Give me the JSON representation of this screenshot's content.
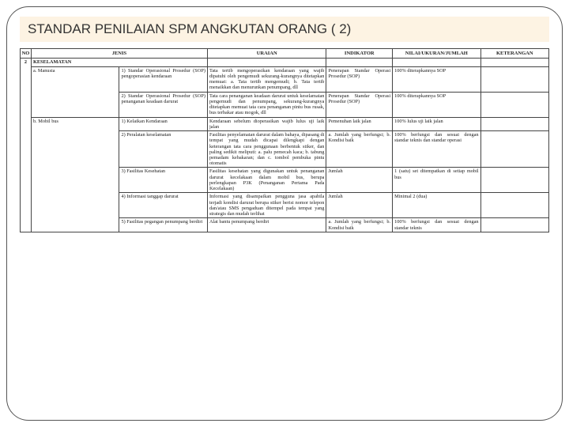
{
  "title": "STANDAR PENILAIAN SPM ANGKUTAN ORANG ( 2)",
  "headers": {
    "no": "NO",
    "jenis": "JENIS",
    "uraian": "URAIAN",
    "indikator": "INDIKATOR",
    "nilai": "NILAI/UKURAN/JUMLAH",
    "keterangan": "KETERANGAN"
  },
  "no_val": "2",
  "group_title": "KESELAMATAN",
  "cat_a": "a. Manusia",
  "cat_b": "b. Mobil bus",
  "r1": {
    "jenis": "1) Standar Operasional Prosedur (SOP) pengoperasian kendaraan",
    "uraian": "Tata tertib mengoperasikan kendaraan yang wajib dipatuhi oleh pengemudi sekurang-kurangnya ditetapkan memuat:\na. Tata tertib mengemudi;\nb. Tata tertib menaikkan dan menurunkan penumpang, dll",
    "indikator": "Penerapan Standar Operasi Prosedur (SOP)",
    "nilai": "100% diterapkannya SOP"
  },
  "r2": {
    "jenis": "2) Standar Operasional Prosedur (SOP) penanganan keadaan darurat",
    "uraian": "Tata cara penanganan keadaan darurat untuk keselamatan pengemudi dan penumpang, sekurang-kurangnya ditetapkan memuat tata cara penanganan pintu bus rusak, bus terbakar atau mogok, dll",
    "indikator": "Penerapan Standar Operasi Prosedur (SOP)",
    "nilai": "100% diterapkannya SOP"
  },
  "r3": {
    "jenis": "1) Kelaikan Kendaraan",
    "uraian": "Kendaraan sebelum dioperasikan wajib lulus uji laik jalan",
    "indikator": "Pemenuhan laik jalan",
    "nilai": "100% lulus uji laik jalan"
  },
  "r4": {
    "jenis": "2) Peralatan keselamatan",
    "uraian": "Fasilitas penyelamatan darurat dalam bahaya, dipasang di tempat yang mudah dicapai dilengkapi dengan keterangan tata cara penggunaan berbentuk stiker, dan paling sedikit meliputi:\na. palu pemecah kaca;\nb. tabung pemadam kebakaran; dan\nc. tombol pembuka pintu otomatis",
    "indikator": "a. Jumlah yang berfungsi;\nb. Kondisi baik",
    "nilai": "100% berfungsi dan sesuai dengan standar teknis dan standar operasi"
  },
  "r5": {
    "jenis": "3) Fasilitas Kesehatan",
    "uraian": "Fasilitas kesehatan yang digunakan untuk penanganan darurat kecelakaan dalam mobil bus, berupa perlengkapan P3K (Penanganan Pertama Pada Kecelakaan)",
    "indikator": "Jumlah",
    "nilai": "1 (satu) set ditempatkan di setiap mobil bus"
  },
  "r6": {
    "jenis": "4) Informasi tanggap darurat",
    "uraian": "Informasi yang disampaikan pengguna jasa apabila terjadi kondisi darurat berupa stiker berisi nomor telepon dan/atau SMS pengaduan ditempel pada tempat yang strategis dan mudah terlihat",
    "indikator": "Jumlah",
    "nilai": "Minimal 2 (dua)"
  },
  "r7": {
    "jenis": "5) Fasilitas pegangan penumpang berdiri",
    "uraian": "Alat bantu penumpang berdiri",
    "indikator": "a. Jumlah yang berfungsi;\nb. Kondisi baik",
    "nilai": "100% berfungsi dan sesuai dengan standar teknis"
  }
}
